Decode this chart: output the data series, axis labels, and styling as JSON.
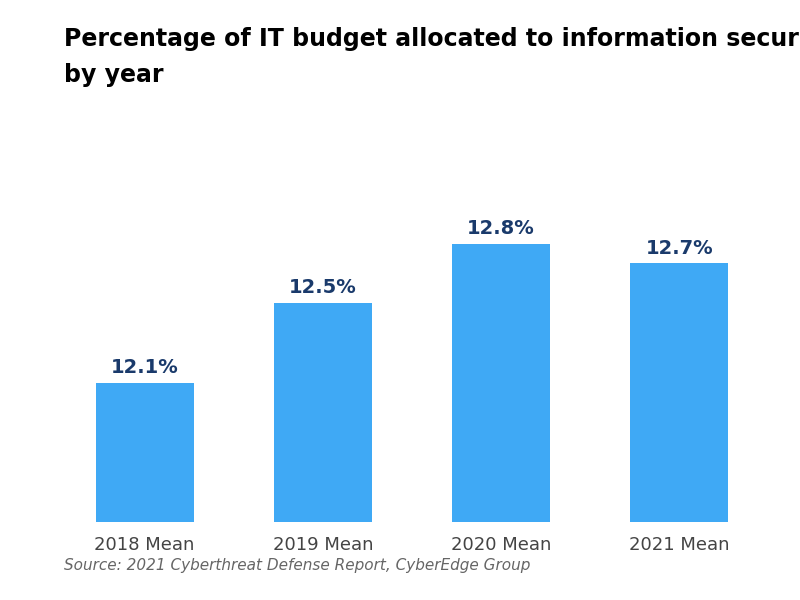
{
  "title_line1": "Percentage of IT budget allocated to information security,",
  "title_line2": "by year",
  "categories": [
    "2018 Mean",
    "2019 Mean",
    "2020 Mean",
    "2021 Mean"
  ],
  "values": [
    12.1,
    12.5,
    12.8,
    12.7
  ],
  "labels": [
    "12.1%",
    "12.5%",
    "12.8%",
    "12.7%"
  ],
  "bar_color": "#3FA9F5",
  "label_color": "#1a3a6b",
  "source_text": "Source: 2021 Cyberthreat Defense Report, CyberEdge Group",
  "background_color": "#ffffff",
  "ylim_min": 11.4,
  "ylim_max": 13.15,
  "title_fontsize": 17,
  "label_fontsize": 14,
  "tick_fontsize": 13,
  "source_fontsize": 11,
  "bar_width": 0.55
}
